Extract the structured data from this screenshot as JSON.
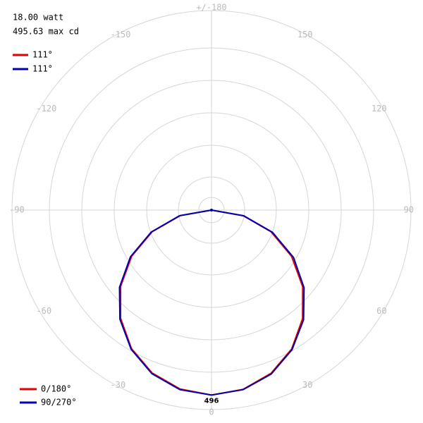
{
  "chart_data": {
    "type": "polar",
    "power": "18.00 watt",
    "max_intensity": "495.63 max cd",
    "rlim": [
      0,
      535
    ],
    "angle_ticks": [
      0,
      30,
      60,
      90,
      120,
      150,
      {
        "value": 180,
        "label": "+/-180"
      },
      -150,
      -120,
      -90,
      -60,
      -30
    ],
    "x": [
      -90,
      -80,
      -70,
      -60,
      -50,
      -40,
      -30,
      -20,
      -10,
      0,
      10,
      20,
      30,
      40,
      50,
      60,
      70,
      80,
      90
    ],
    "series": [
      {
        "name": "0/180°",
        "beam_angle": "111°",
        "color": "#e00000",
        "values": [
          0,
          85,
          169,
          247,
          318,
          379,
          429,
          465,
          487,
          496,
          488,
          466,
          430,
          380,
          319,
          248,
          170,
          86,
          0
        ]
      },
      {
        "name": "90/270°",
        "beam_angle": "111°",
        "color": "#0000b0",
        "values": [
          0,
          87,
          172,
          251,
          322,
          382,
          431,
          467,
          489,
          496,
          489,
          468,
          432,
          384,
          324,
          254,
          174,
          88,
          0
        ]
      }
    ]
  }
}
